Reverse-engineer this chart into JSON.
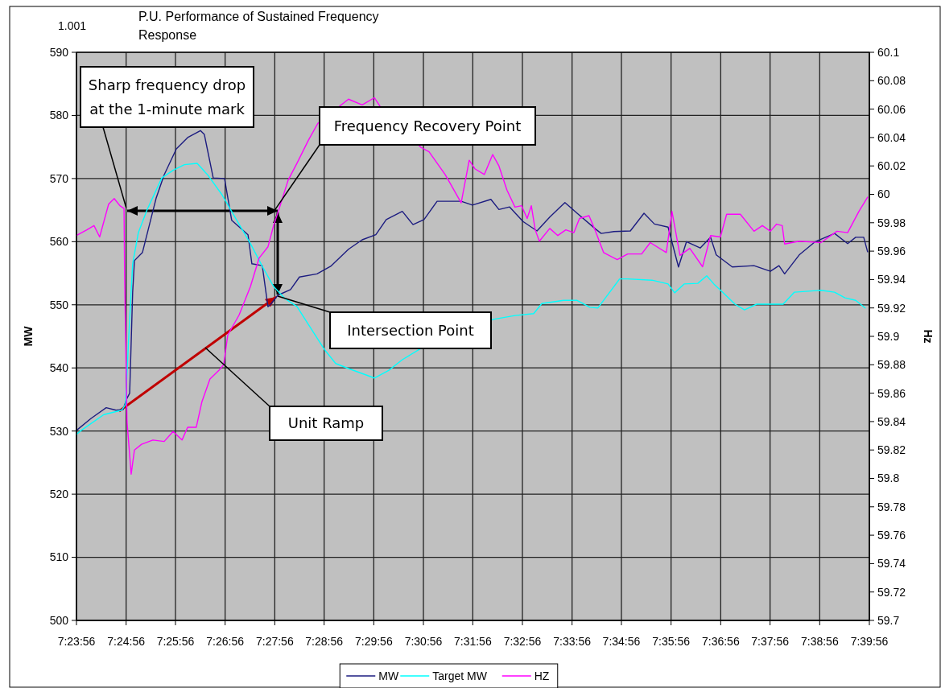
{
  "chart_data": {
    "type": "line",
    "title": "P.U. Performance of Sustained Frequency Response",
    "ylabel": "MW",
    "y2label": "Hz",
    "annotations": [
      "1.001",
      {
        "text": "Sharp frequency drop at the 1-minute mark",
        "x": 7.4156,
        "y": 565.4
      },
      {
        "text": "Frequency Recovery Point",
        "x": 7.4656,
        "y": 565
      },
      "Intersection Point",
      "Unit Ramp"
    ],
    "xlim": [
      7.3989,
      7.6656
    ],
    "xticks": [
      {
        "value": 7.3989,
        "label": "7:23:56"
      },
      {
        "value": 7.4156,
        "label": "7:24:56"
      },
      {
        "value": 7.4322,
        "label": "7:25:56"
      },
      {
        "value": 7.4489,
        "label": "7:26:56"
      },
      {
        "value": 7.4656,
        "label": "7:27:56"
      },
      {
        "value": 7.4822,
        "label": "7:28:56"
      },
      {
        "value": 7.4989,
        "label": "7:29:56"
      },
      {
        "value": 7.5156,
        "label": "7:30:56"
      },
      {
        "value": 7.5322,
        "label": "7:31:56"
      },
      {
        "value": 7.5489,
        "label": "7:32:56"
      },
      {
        "value": 7.5656,
        "label": "7:33:56"
      },
      {
        "value": 7.5822,
        "label": "7:34:56"
      },
      {
        "value": 7.5989,
        "label": "7:35:56"
      },
      {
        "value": 7.6156,
        "label": "7:36:56"
      },
      {
        "value": 7.6322,
        "label": "7:37:56"
      },
      {
        "value": 7.6489,
        "label": "7:38:56"
      },
      {
        "value": 7.6656,
        "label": "7:39:56"
      }
    ],
    "ylim": [
      500,
      590
    ],
    "yticks": [
      500,
      510,
      520,
      530,
      540,
      550,
      560,
      570,
      580,
      590
    ],
    "y2lim": [
      59.7,
      60.1
    ],
    "y2ticks": [
      59.7,
      59.72,
      59.74,
      59.76,
      59.78,
      59.8,
      59.82,
      59.84,
      59.86,
      59.88,
      59.9,
      59.92,
      59.94,
      59.96,
      59.98,
      60,
      60.02,
      60.04,
      60.06,
      60.08,
      60.1
    ],
    "grid": true,
    "legend": "bottom",
    "series": [
      {
        "name": "MW",
        "color": "#1c1c80",
        "x": [
          7.3989,
          7.4038,
          7.4089,
          7.4122,
          7.4146,
          7.4157,
          7.4168,
          7.4178,
          7.4184,
          7.4211,
          7.4257,
          7.4284,
          7.4325,
          7.4363,
          7.4406,
          7.4419,
          7.4449,
          7.4487,
          7.4511,
          7.4566,
          7.4579,
          7.4614,
          7.4633,
          7.4641,
          7.4666,
          7.4709,
          7.4739,
          7.4798,
          7.4844,
          7.4904,
          7.495,
          7.4996,
          7.5031,
          7.5085,
          7.5121,
          7.5158,
          7.5202,
          7.5283,
          7.5321,
          7.5383,
          7.541,
          7.5446,
          7.5491,
          7.5538,
          7.5581,
          7.5632,
          7.5673,
          7.5735,
          7.5754,
          7.5797,
          7.5852,
          7.5898,
          7.5933,
          7.5979,
          7.6014,
          7.6041,
          7.6087,
          7.6122,
          7.6141,
          7.6195,
          7.6268,
          7.6323,
          7.6352,
          7.6371,
          7.642,
          7.6474,
          7.6539,
          7.6583,
          7.661,
          7.6637,
          7.665
        ],
        "values": [
          530.1,
          532,
          533.7,
          533.3,
          533.4,
          535,
          536,
          552,
          557,
          558.3,
          566.9,
          570.6,
          574.7,
          576.5,
          577.6,
          577,
          570.1,
          570,
          563.4,
          561.1,
          556.5,
          556.2,
          549.7,
          550,
          551.5,
          552.4,
          554.4,
          554.9,
          556.1,
          558.8,
          560.3,
          561.1,
          563.5,
          564.8,
          562.7,
          563.5,
          566.4,
          566.4,
          565.8,
          566.7,
          565.1,
          565.5,
          563.2,
          561.7,
          563.9,
          566.2,
          564.5,
          562,
          561.3,
          561.6,
          561.7,
          564.5,
          562.8,
          562.3,
          556,
          560,
          559,
          560.7,
          557.9,
          556,
          556.2,
          555.3,
          556.2,
          554.9,
          557.9,
          560,
          561.3,
          559.7,
          560.7,
          560.7,
          558.4
        ]
      },
      {
        "name": "Target MW",
        "color": "#00ffff",
        "x": [
          7.3989,
          7.4005,
          7.4081,
          7.4141,
          7.4154,
          7.4165,
          7.4178,
          7.4197,
          7.4227,
          7.4276,
          7.4314,
          7.4352,
          7.4395,
          7.443,
          7.4479,
          7.4528,
          7.4574,
          7.4614,
          7.4652,
          7.469,
          7.4731,
          7.4788,
          7.4825,
          7.4861,
          7.4904,
          7.4991,
          7.5039,
          7.5085,
          7.5148,
          7.5391,
          7.5464,
          7.5527,
          7.5554,
          7.5627,
          7.5673,
          7.5716,
          7.5743,
          7.5816,
          7.5843,
          7.5925,
          7.5979,
          7.6001,
          7.6033,
          7.6079,
          7.6109,
          7.6133,
          7.616,
          7.6204,
          7.6236,
          7.6277,
          7.6366,
          7.6404,
          7.6493,
          7.6539,
          7.6574,
          7.661,
          7.6642
        ],
        "values": [
          529.5,
          530.1,
          532.6,
          533.3,
          534.2,
          545.1,
          556.5,
          561.4,
          565.1,
          570.1,
          571.3,
          572.2,
          572.4,
          570.6,
          567.4,
          563.4,
          559.7,
          556.1,
          552.9,
          551,
          549.7,
          545.5,
          542.8,
          540.7,
          539.9,
          538.4,
          539.6,
          541.3,
          543.1,
          547.7,
          548.3,
          548.6,
          550.2,
          550.7,
          550.7,
          549.6,
          549.5,
          554.1,
          554.1,
          553.9,
          553.3,
          551.9,
          553.3,
          553.4,
          554.6,
          553.3,
          552.1,
          550.1,
          549.2,
          550.1,
          550.1,
          552,
          552.3,
          552,
          551.1,
          550.7,
          549.5
        ]
      },
      {
        "name": "HZ",
        "color": "#ff00ff",
        "axis": "y2",
        "x": [
          7.3989,
          7.4024,
          7.4048,
          7.4067,
          7.4097,
          7.4116,
          7.4135,
          7.4149,
          7.4151,
          7.4159,
          7.4173,
          7.4184,
          7.4208,
          7.4246,
          7.4284,
          7.4314,
          7.4344,
          7.4363,
          7.4392,
          7.4411,
          7.4438,
          7.4468,
          7.4484,
          7.4498,
          7.4536,
          7.4574,
          7.4603,
          7.4633,
          7.4652,
          7.4671,
          7.4701,
          7.4731,
          7.4769,
          7.4801,
          7.4904,
          7.495,
          7.4991,
          7.501,
          7.5148,
          7.5175,
          7.5229,
          7.5248,
          7.5283,
          7.531,
          7.5329,
          7.5361,
          7.5389,
          7.541,
          7.5437,
          7.5464,
          7.5486,
          7.5505,
          7.5519,
          7.5532,
          7.5546,
          7.5581,
          7.5608,
          7.5635,
          7.5662,
          7.5681,
          7.5713,
          7.5735,
          7.5762,
          7.5808,
          7.5843,
          7.589,
          7.5919,
          7.5973,
          7.5992,
          7.6019,
          7.6052,
          7.6095,
          7.6122,
          7.6155,
          7.6176,
          7.6222,
          7.6268,
          7.6296,
          7.6323,
          7.6344,
          7.6363,
          7.6371,
          7.642,
          7.6493,
          7.6547,
          7.6583,
          7.6621,
          7.665
        ],
        "values": [
          59.971,
          59.975,
          59.978,
          59.97,
          59.993,
          59.997,
          59.992,
          59.99,
          59.941,
          59.84,
          59.803,
          59.82,
          59.824,
          59.827,
          59.826,
          59.833,
          59.827,
          59.836,
          59.836,
          59.854,
          59.87,
          59.876,
          59.88,
          59.901,
          59.915,
          59.935,
          59.955,
          59.963,
          59.978,
          59.99,
          60.01,
          60.022,
          60.038,
          60.05,
          60.067,
          60.063,
          60.068,
          60.062,
          60.033,
          60.03,
          60.014,
          60.007,
          59.994,
          60.024,
          60.018,
          60.014,
          60.028,
          60.02,
          60.003,
          59.991,
          59.992,
          59.983,
          59.992,
          59.975,
          59.967,
          59.976,
          59.971,
          59.975,
          59.973,
          59.983,
          59.985,
          59.974,
          59.959,
          59.954,
          59.958,
          59.958,
          59.966,
          59.959,
          59.988,
          59.957,
          59.962,
          59.949,
          59.971,
          59.97,
          59.986,
          59.986,
          59.974,
          59.978,
          59.974,
          59.979,
          59.978,
          59.965,
          59.967,
          59.966,
          59.974,
          59.973,
          59.988,
          59.998
        ]
      }
    ]
  }
}
